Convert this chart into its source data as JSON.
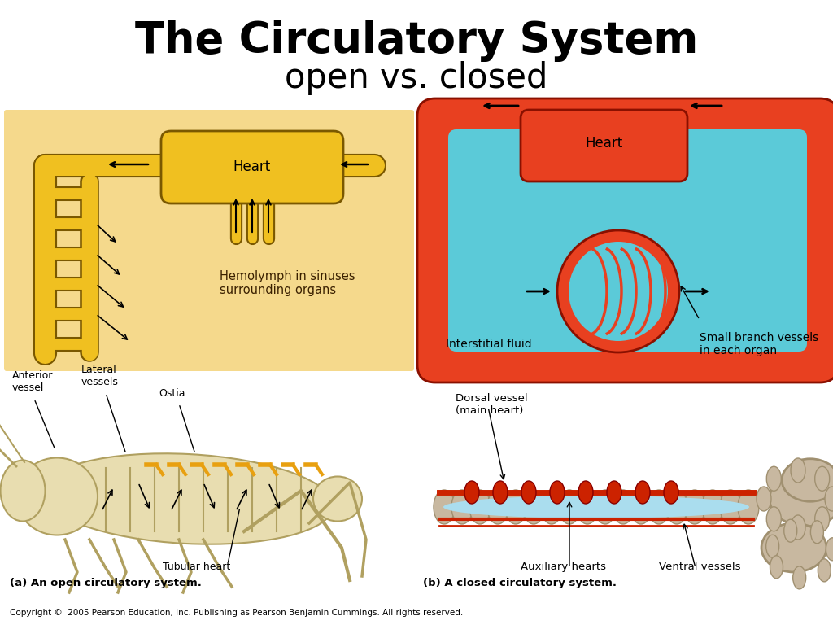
{
  "title_line1": "The Circulatory System",
  "title_line2": "open vs. closed",
  "bg_color": "#ffffff",
  "left_panel_bg": "#f5d98c",
  "right_panel_bg": "#5bcad8",
  "left_vessel_color": "#f0c020",
  "left_vessel_edge": "#7a5800",
  "right_vessel_color": "#e84020",
  "right_vessel_edge": "#8a1000",
  "left_label_heart": "Heart",
  "left_label_hemolymph": "Hemolymph in sinuses\nsurrounding organs",
  "right_label_heart": "Heart",
  "right_label_interstitial": "Interstitial fluid",
  "right_label_small_branch": "Small branch vessels\nin each organ",
  "caption_left": "(a) An open circulatory system.",
  "caption_right": "(b) A closed circulatory system.",
  "copyright": "Copyright ©  2005 Pearson Education, Inc. Publishing as Pearson Benjamin Cummings. All rights reserved.",
  "label_anterior": "Anterior\nvessel",
  "label_lateral": "Lateral\nvessels",
  "label_ostia": "Ostia",
  "label_tubular": "Tubular heart",
  "label_dorsal": "Dorsal vessel\n(main heart)",
  "label_auxiliary": "Auxiliary hearts",
  "label_ventral": "Ventral vessels",
  "grasshopper_body": "#e8ddb0",
  "grasshopper_dark": "#c8b870",
  "grasshopper_shadow": "#b0a060",
  "worm_body": "#c8b8a0",
  "worm_dark": "#a09070",
  "worm_red": "#cc2200"
}
